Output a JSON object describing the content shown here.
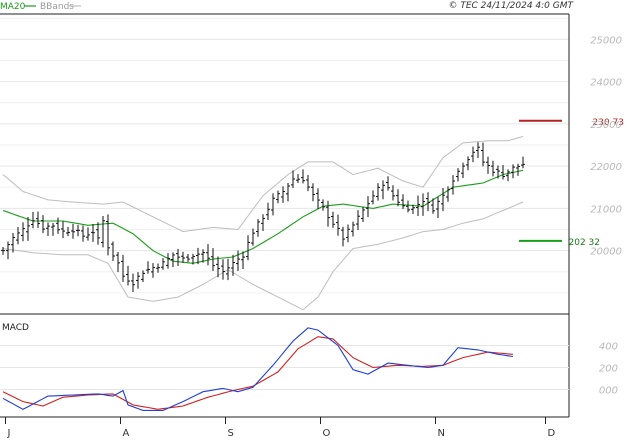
{
  "header": {
    "legend_ma": "MA20",
    "legend_bb": "BBands",
    "copyright": "© TEC 24/11/2024 4:0 GMT"
  },
  "colors": {
    "price_bar": "#111111",
    "ma20": "#1a9e1a",
    "bbands": "#bdbdbd",
    "resistance": "#b22222",
    "support": "#1a9e1a",
    "macd_line": "#1f3fd6",
    "signal_line": "#d42020",
    "grid": "#e6e6e6",
    "axis": "#222222"
  },
  "levels": {
    "resistance": {
      "value": 23073,
      "label": "230 73"
    },
    "support": {
      "value": 20232,
      "label": "202 32"
    }
  },
  "macd_panel": {
    "title": "MACD"
  },
  "chart_data": [
    {
      "type": "ohlc",
      "ylim": [
        18500,
        25600
      ],
      "yticks": [
        20000,
        21000,
        22000,
        23000,
        24000,
        25000
      ],
      "ytick_labels": [
        "20000",
        "21000",
        "22000",
        "23000",
        "24000",
        "25000"
      ],
      "x_months": [
        "J",
        "A",
        "S",
        "O",
        "N",
        "D"
      ],
      "x_month_positions": [
        0.5,
        23.5,
        44.5,
        63.5,
        86.5,
        108.5
      ],
      "bar_count": 105,
      "grid": true,
      "series": [
        {
          "name": "MA20",
          "anchors": [
            [
              0,
              20950
            ],
            [
              6,
              20700
            ],
            [
              12,
              20700
            ],
            [
              17,
              20600
            ],
            [
              22,
              20650
            ],
            [
              26,
              20400
            ],
            [
              30,
              20000
            ],
            [
              34,
              19750
            ],
            [
              38,
              19700
            ],
            [
              42,
              19800
            ],
            [
              46,
              19850
            ],
            [
              50,
              20050
            ],
            [
              55,
              20400
            ],
            [
              60,
              20800
            ],
            [
              64,
              21050
            ],
            [
              68,
              21100
            ],
            [
              74,
              21000
            ],
            [
              78,
              21100
            ],
            [
              84,
              21050
            ],
            [
              90,
              21500
            ],
            [
              96,
              21600
            ],
            [
              100,
              21800
            ],
            [
              104,
              21900
            ]
          ]
        },
        {
          "name": "BBands",
          "upper_anchors": [
            [
              0,
              21800
            ],
            [
              4,
              21400
            ],
            [
              9,
              21200
            ],
            [
              14,
              21150
            ],
            [
              20,
              21100
            ],
            [
              24,
              21150
            ],
            [
              30,
              20800
            ],
            [
              36,
              20450
            ],
            [
              42,
              20550
            ],
            [
              47,
              20500
            ],
            [
              52,
              21300
            ],
            [
              57,
              21800
            ],
            [
              61,
              22100
            ],
            [
              66,
              22100
            ],
            [
              70,
              21800
            ],
            [
              75,
              21950
            ],
            [
              80,
              21650
            ],
            [
              84,
              21500
            ],
            [
              88,
              22200
            ],
            [
              92,
              22550
            ],
            [
              97,
              22600
            ],
            [
              101,
              22600
            ],
            [
              104,
              22700
            ]
          ],
          "lower_anchors": [
            [
              0,
              20050
            ],
            [
              6,
              19950
            ],
            [
              12,
              19900
            ],
            [
              17,
              19900
            ],
            [
              21,
              19700
            ],
            [
              25,
              18900
            ],
            [
              30,
              18800
            ],
            [
              35,
              18900
            ],
            [
              40,
              19200
            ],
            [
              45,
              19550
            ],
            [
              50,
              19200
            ],
            [
              55,
              18900
            ],
            [
              60,
              18600
            ],
            [
              63,
              18900
            ],
            [
              66,
              19500
            ],
            [
              70,
              20050
            ],
            [
              75,
              20150
            ],
            [
              80,
              20300
            ],
            [
              84,
              20450
            ],
            [
              88,
              20500
            ],
            [
              92,
              20650
            ],
            [
              96,
              20750
            ],
            [
              100,
              20950
            ],
            [
              104,
              21150
            ]
          ]
        }
      ],
      "close_anchors": [
        [
          0,
          20000
        ],
        [
          2,
          20300
        ],
        [
          4,
          20500
        ],
        [
          6,
          20750
        ],
        [
          8,
          20550
        ],
        [
          10,
          20600
        ],
        [
          12,
          20450
        ],
        [
          14,
          20500
        ],
        [
          16,
          20350
        ],
        [
          18,
          20450
        ],
        [
          19,
          20250
        ],
        [
          20,
          20700
        ],
        [
          21,
          20100
        ],
        [
          23,
          19700
        ],
        [
          24,
          19400
        ],
        [
          26,
          19250
        ],
        [
          28,
          19500
        ],
        [
          30,
          19600
        ],
        [
          32,
          19700
        ],
        [
          34,
          19900
        ],
        [
          36,
          19800
        ],
        [
          38,
          19900
        ],
        [
          40,
          19950
        ],
        [
          42,
          19650
        ],
        [
          44,
          19500
        ],
        [
          46,
          19700
        ],
        [
          48,
          19900
        ],
        [
          50,
          20450
        ],
        [
          52,
          20800
        ],
        [
          54,
          21200
        ],
        [
          56,
          21400
        ],
        [
          58,
          21700
        ],
        [
          60,
          21700
        ],
        [
          62,
          21300
        ],
        [
          64,
          21000
        ],
        [
          66,
          20650
        ],
        [
          68,
          20300
        ],
        [
          70,
          20600
        ],
        [
          72,
          20950
        ],
        [
          74,
          21300
        ],
        [
          76,
          21600
        ],
        [
          78,
          21300
        ],
        [
          80,
          21050
        ],
        [
          82,
          21000
        ],
        [
          84,
          21200
        ],
        [
          86,
          21000
        ],
        [
          88,
          21300
        ],
        [
          90,
          21700
        ],
        [
          92,
          22050
        ],
        [
          94,
          22350
        ],
        [
          95,
          22400
        ],
        [
          96,
          22100
        ],
        [
          98,
          21900
        ],
        [
          100,
          21800
        ],
        [
          102,
          21950
        ],
        [
          104,
          22050
        ]
      ]
    },
    {
      "type": "line",
      "title": "MACD",
      "ylim": [
        -250,
        650
      ],
      "yticks": [
        0,
        200,
        400
      ],
      "ytick_labels": [
        "000",
        "200",
        "400"
      ],
      "series": [
        {
          "name": "MACD",
          "anchors": [
            [
              0,
              -80
            ],
            [
              4,
              -180
            ],
            [
              9,
              -60
            ],
            [
              14,
              -50
            ],
            [
              19,
              -40
            ],
            [
              22,
              -60
            ],
            [
              24,
              -10
            ],
            [
              25,
              -140
            ],
            [
              28,
              -190
            ],
            [
              32,
              -190
            ],
            [
              36,
              -110
            ],
            [
              40,
              -20
            ],
            [
              44,
              10
            ],
            [
              47,
              -20
            ],
            [
              50,
              20
            ],
            [
              54,
              220
            ],
            [
              58,
              440
            ],
            [
              61,
              560
            ],
            [
              63,
              540
            ],
            [
              67,
              400
            ],
            [
              70,
              180
            ],
            [
              73,
              140
            ],
            [
              77,
              240
            ],
            [
              81,
              220
            ],
            [
              85,
              200
            ],
            [
              88,
              220
            ],
            [
              91,
              380
            ],
            [
              95,
              360
            ],
            [
              99,
              320
            ],
            [
              102,
              300
            ]
          ]
        },
        {
          "name": "Signal",
          "anchors": [
            [
              0,
              -20
            ],
            [
              4,
              -110
            ],
            [
              8,
              -150
            ],
            [
              12,
              -70
            ],
            [
              17,
              -50
            ],
            [
              22,
              -40
            ],
            [
              26,
              -140
            ],
            [
              31,
              -180
            ],
            [
              36,
              -150
            ],
            [
              41,
              -70
            ],
            [
              46,
              -10
            ],
            [
              50,
              30
            ],
            [
              55,
              160
            ],
            [
              59,
              370
            ],
            [
              63,
              480
            ],
            [
              66,
              460
            ],
            [
              70,
              290
            ],
            [
              74,
              200
            ],
            [
              79,
              220
            ],
            [
              84,
              210
            ],
            [
              88,
              220
            ],
            [
              92,
              290
            ],
            [
              97,
              340
            ],
            [
              102,
              320
            ]
          ]
        }
      ]
    }
  ]
}
